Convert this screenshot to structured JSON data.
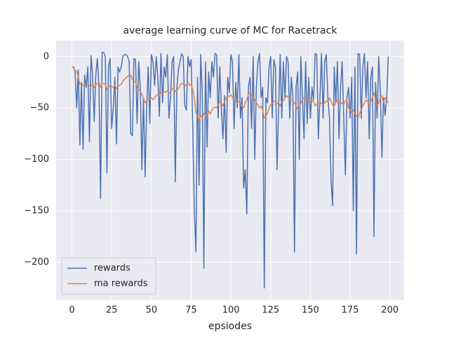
{
  "chart_data": {
    "type": "line",
    "title": "average learning curve of MC for Racetrack",
    "xlabel": "epsiodes",
    "legend": "lower left",
    "grid": true,
    "xlim": [
      -9.95,
      208.95
    ],
    "ylim": [
      -236.5,
      15.5
    ],
    "xticks": [
      0,
      25,
      50,
      75,
      100,
      125,
      150,
      175,
      200
    ],
    "yticks": [
      0,
      {
        "value": -50,
        "label": "−50"
      },
      {
        "value": -100,
        "label": "−100"
      },
      {
        "value": -150,
        "label": "−150"
      },
      {
        "value": -200,
        "label": "−200"
      }
    ],
    "x": [
      0,
      1,
      2,
      3,
      4,
      5,
      6,
      7,
      8,
      9,
      10,
      11,
      12,
      13,
      14,
      15,
      16,
      17,
      18,
      19,
      20,
      21,
      22,
      23,
      24,
      25,
      26,
      27,
      28,
      29,
      30,
      31,
      32,
      33,
      34,
      35,
      36,
      37,
      38,
      39,
      40,
      41,
      42,
      43,
      44,
      45,
      46,
      47,
      48,
      49,
      50,
      51,
      52,
      53,
      54,
      55,
      56,
      57,
      58,
      59,
      60,
      61,
      62,
      63,
      64,
      65,
      66,
      67,
      68,
      69,
      70,
      71,
      72,
      73,
      74,
      75,
      76,
      77,
      78,
      79,
      80,
      81,
      82,
      83,
      84,
      85,
      86,
      87,
      88,
      89,
      90,
      91,
      92,
      93,
      94,
      95,
      96,
      97,
      98,
      99,
      100,
      101,
      102,
      103,
      104,
      105,
      106,
      107,
      108,
      109,
      110,
      111,
      112,
      113,
      114,
      115,
      116,
      117,
      118,
      119,
      120,
      121,
      122,
      123,
      124,
      125,
      126,
      127,
      128,
      129,
      130,
      131,
      132,
      133,
      134,
      135,
      136,
      137,
      138,
      139,
      140,
      141,
      142,
      143,
      144,
      145,
      146,
      147,
      148,
      149,
      150,
      151,
      152,
      153,
      154,
      155,
      156,
      157,
      158,
      159,
      160,
      161,
      162,
      163,
      164,
      165,
      166,
      167,
      168,
      169,
      170,
      171,
      172,
      173,
      174,
      175,
      176,
      177,
      178,
      179,
      180,
      181,
      182,
      183,
      184,
      185,
      186,
      187,
      188,
      189,
      190,
      191,
      192,
      193,
      194,
      195,
      196,
      197,
      198,
      199
    ],
    "series": [
      {
        "name": "rewards",
        "color": "#4c72b0",
        "values": [
          -10,
          -10,
          -15,
          -50,
          -13,
          -86,
          -25,
          -90,
          -18,
          -30,
          -10,
          -83,
          1,
          -18,
          -63,
          -18,
          -2,
          -30,
          -138,
          4,
          4,
          0,
          -113,
          -10,
          -2,
          -70,
          -50,
          -20,
          -85,
          -10,
          -15,
          -10,
          0,
          2,
          2,
          0,
          -5,
          -75,
          -77,
          -2,
          -3,
          -65,
          -5,
          -30,
          -110,
          -40,
          -117,
          -50,
          -10,
          -65,
          2,
          -5,
          -28,
          0,
          -20,
          -58,
          3,
          -45,
          -10,
          -20,
          2,
          -60,
          -40,
          -5,
          0,
          -122,
          -30,
          -12,
          -5,
          3,
          0,
          -48,
          -52,
          0,
          -10,
          -3,
          -70,
          -150,
          -190,
          -20,
          -125,
          2,
          -35,
          -206,
          -5,
          -88,
          -15,
          -40,
          -5,
          -20,
          3,
          2,
          -60,
          -10,
          -50,
          -80,
          -38,
          -93,
          -20,
          -35,
          2,
          -5,
          -70,
          -25,
          -50,
          2,
          -60,
          -40,
          -128,
          -110,
          -153,
          -30,
          -20,
          -70,
          0,
          -100,
          -30,
          -5,
          3,
          -40,
          -30,
          -225,
          -40,
          -45,
          -10,
          0,
          -60,
          -3,
          -10,
          -110,
          -50,
          2,
          -60,
          -5,
          -40,
          0,
          -5,
          -60,
          -20,
          -40,
          -190,
          -30,
          -15,
          -100,
          0,
          -40,
          -80,
          -5,
          -65,
          -20,
          -60,
          -30,
          -42,
          3,
          2,
          -80,
          -40,
          3,
          -60,
          -5,
          2,
          -40,
          -60,
          -120,
          -145,
          -10,
          -45,
          -5,
          -80,
          -30,
          -5,
          -60,
          -115,
          -40,
          -30,
          -60,
          -20,
          -150,
          -10,
          -192,
          3,
          2,
          -60,
          -10,
          3,
          -40,
          -5,
          -80,
          -20,
          -10,
          -175,
          -25,
          -60,
          0,
          -35,
          -98,
          -40,
          -57,
          -40,
          0
        ]
      },
      {
        "name": "ma rewards",
        "color": "#dd8452",
        "values": [
          -10,
          -11,
          -14,
          -14,
          -20,
          -27,
          -26,
          -28,
          -27,
          -26,
          -27,
          -28,
          -29,
          -27,
          -30,
          -28,
          -26,
          -25,
          -30,
          -27,
          -26,
          -27,
          -32,
          -30,
          -28,
          -29,
          -30,
          -28,
          -31,
          -29,
          -28,
          -27,
          -24,
          -22,
          -21,
          -19,
          -18,
          -18,
          -22,
          -25,
          -24,
          -30,
          -32,
          -33,
          -37,
          -40,
          -45,
          -43,
          -42,
          -41,
          -40,
          -42,
          -40,
          -38,
          -37,
          -38,
          -35,
          -36,
          -34,
          -35,
          -33,
          -36,
          -34,
          -32,
          -30,
          -34,
          -33,
          -31,
          -28,
          -26,
          -27,
          -29,
          -27,
          -25,
          -28,
          -27,
          -32,
          -40,
          -55,
          -57,
          -62,
          -57,
          -60,
          -55,
          -58,
          -57,
          -53,
          -56,
          -52,
          -50,
          -49,
          -50,
          -47,
          -44,
          -45,
          -48,
          -44,
          -40,
          -38,
          -39,
          -37,
          -40,
          -42,
          -43,
          -45,
          -44,
          -45,
          -48,
          -50,
          -45,
          -42,
          -37,
          -35,
          -38,
          -40,
          -42,
          -45,
          -47,
          -50,
          -48,
          -52,
          -60,
          -58,
          -55,
          -50,
          -47,
          -45,
          -44,
          -43,
          -46,
          -45,
          -48,
          -44,
          -43,
          -40,
          -38,
          -40,
          -41,
          -42,
          -43,
          -45,
          -48,
          -52,
          -50,
          -45,
          -42,
          -40,
          -42,
          -43,
          -44,
          -40,
          -42,
          -44,
          -48,
          -46,
          -45,
          -44,
          -46,
          -47,
          -45,
          -43,
          -44,
          -40,
          -43,
          -47,
          -48,
          -45,
          -42,
          -44,
          -46,
          -45,
          -47,
          -43,
          -42,
          -50,
          -52,
          -55,
          -52,
          -55,
          -58,
          -60,
          -55,
          -52,
          -48,
          -45,
          -42,
          -44,
          -46,
          -44,
          -40,
          -35,
          -42,
          -48,
          -45,
          -40,
          -38,
          -45,
          -40,
          -42,
          -45
        ]
      }
    ]
  }
}
